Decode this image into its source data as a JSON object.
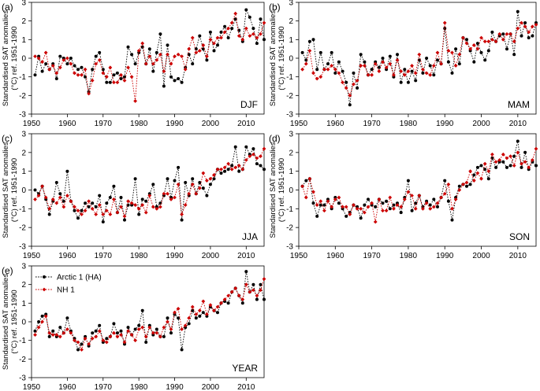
{
  "colors": {
    "arctic": "#000000",
    "nh": "#cc0000"
  },
  "legend": {
    "arctic": "Arctic 1 (HA)",
    "nh": "NH 1"
  },
  "chart_data": [
    {
      "type": "line",
      "panel": "(a)",
      "season": "DJF",
      "ylabel_line1": "Standardised SAT anomalies",
      "ylabel_line2": "(°C) ref. 1951-1990",
      "xlim": [
        1950,
        2015
      ],
      "ylim": [
        -3,
        3
      ],
      "xticks": [
        1950,
        1960,
        1970,
        1980,
        1990,
        2000,
        2010
      ],
      "yticks": [
        -3,
        -2,
        -1,
        0,
        1,
        2,
        3
      ],
      "x": [
        1951,
        1952,
        1953,
        1954,
        1955,
        1956,
        1957,
        1958,
        1959,
        1960,
        1961,
        1962,
        1963,
        1964,
        1965,
        1966,
        1967,
        1968,
        1969,
        1970,
        1971,
        1972,
        1973,
        1974,
        1975,
        1976,
        1977,
        1978,
        1979,
        1980,
        1981,
        1982,
        1983,
        1984,
        1985,
        1986,
        1987,
        1988,
        1989,
        1990,
        1991,
        1992,
        1993,
        1994,
        1995,
        1996,
        1997,
        1998,
        1999,
        2000,
        2001,
        2002,
        2003,
        2004,
        2005,
        2006,
        2007,
        2008,
        2009,
        2010,
        2011,
        2012,
        2013,
        2014,
        2015
      ],
      "series": [
        {
          "name": "Arctic 1 (HA)",
          "values": [
            -0.9,
            0.1,
            -0.7,
            -0.3,
            -0.6,
            -0.3,
            -1.1,
            0.1,
            0.0,
            -0.3,
            0.0,
            -0.4,
            -0.6,
            -0.5,
            -1.0,
            -1.8,
            -0.6,
            0.1,
            0.3,
            -0.6,
            -1.3,
            -1.3,
            -0.9,
            -0.8,
            -1.1,
            -1.0,
            0.6,
            0.2,
            -0.3,
            0.3,
            0.6,
            -0.3,
            0.5,
            -0.7,
            0.3,
            1.3,
            -1.5,
            0.7,
            -1.0,
            -1.2,
            -1.1,
            -1.3,
            -0.5,
            0.2,
            -0.3,
            0.5,
            1.2,
            0.5,
            -0.1,
            1.4,
            0.4,
            0.7,
            1.4,
            1.7,
            1.1,
            1.6,
            2.1,
            1.5,
            0.9,
            2.6,
            2.2,
            1.6,
            0.8,
            2.1,
            1.0
          ]
        },
        {
          "name": "NH 1",
          "values": [
            0.1,
            0.0,
            -0.2,
            0.3,
            -0.6,
            -0.4,
            -0.8,
            -0.5,
            -0.1,
            0.0,
            -0.3,
            -0.8,
            -0.9,
            -0.9,
            -0.6,
            -1.9,
            -1.2,
            -0.3,
            -0.1,
            -0.8,
            -1.0,
            -0.5,
            -1.3,
            -1.3,
            -0.9,
            -1.2,
            -0.5,
            -1.0,
            -2.3,
            0.4,
            0.8,
            -0.3,
            0.1,
            -0.3,
            -0.1,
            0.2,
            -0.7,
            0.2,
            -0.3,
            0.1,
            0.2,
            0.1,
            -0.6,
            0.5,
            1.1,
            0.3,
            0.4,
            0.7,
            0.1,
            1.0,
            0.8,
            1.1,
            1.1,
            1.4,
            1.6,
            1.9,
            2.4,
            1.2,
            1.0,
            1.6,
            1.2,
            1.3,
            1.1,
            1.3,
            1.9
          ]
        }
      ]
    },
    {
      "type": "line",
      "panel": "(b)",
      "season": "MAM",
      "ylabel_line1": "Standardised SAT anomalies",
      "ylabel_line2": "(°C) ref. 1951-1990",
      "xlim": [
        1950,
        2015
      ],
      "ylim": [
        -3,
        3
      ],
      "xticks": [
        1950,
        1960,
        1970,
        1980,
        1990,
        2000,
        2010
      ],
      "yticks": [
        -3,
        -2,
        -1,
        0,
        1,
        2,
        3
      ],
      "x": [
        1951,
        1952,
        1953,
        1954,
        1955,
        1956,
        1957,
        1958,
        1959,
        1960,
        1961,
        1962,
        1963,
        1964,
        1965,
        1966,
        1967,
        1968,
        1969,
        1970,
        1971,
        1972,
        1973,
        1974,
        1975,
        1976,
        1977,
        1978,
        1979,
        1980,
        1981,
        1982,
        1983,
        1984,
        1985,
        1986,
        1987,
        1988,
        1989,
        1990,
        1991,
        1992,
        1993,
        1994,
        1995,
        1996,
        1997,
        1998,
        1999,
        2000,
        2001,
        2002,
        2003,
        2004,
        2005,
        2006,
        2007,
        2008,
        2009,
        2010,
        2011,
        2012,
        2013,
        2014,
        2015
      ],
      "series": [
        {
          "name": "Arctic 1 (HA)",
          "values": [
            0.3,
            -0.1,
            0.9,
            1.0,
            -0.6,
            0.3,
            -0.6,
            -0.3,
            0.3,
            -0.8,
            -0.2,
            -0.7,
            -1.3,
            -2.5,
            -0.8,
            -1.6,
            0.2,
            -0.2,
            -0.9,
            -0.6,
            -0.2,
            -0.5,
            0.0,
            -0.6,
            0.1,
            -1.0,
            0.2,
            -1.3,
            -0.6,
            -1.3,
            -0.7,
            -1.2,
            -0.1,
            -0.8,
            0.0,
            -0.4,
            -0.9,
            -0.1,
            -0.3,
            1.6,
            -0.2,
            -0.8,
            0.5,
            -0.3,
            1.1,
            1.0,
            0.4,
            -0.2,
            0.8,
            0.3,
            -0.1,
            0.4,
            1.4,
            0.9,
            1.2,
            1.3,
            0.5,
            1.3,
            0.2,
            2.5,
            1.2,
            1.9,
            1.1,
            1.2,
            1.9
          ]
        },
        {
          "name": "NH 1",
          "values": [
            -0.6,
            -0.3,
            0.4,
            -0.8,
            -1.1,
            -1.0,
            -0.6,
            -0.6,
            -0.4,
            -0.6,
            -0.8,
            -1.3,
            -1.6,
            -2.0,
            -1.4,
            -1.2,
            -0.4,
            -0.4,
            -0.9,
            -0.9,
            -0.3,
            -0.7,
            -0.2,
            -0.5,
            -0.3,
            -0.9,
            -0.1,
            -0.7,
            -0.9,
            -0.7,
            -0.4,
            -0.8,
            0.2,
            -0.6,
            -0.8,
            -0.9,
            -0.4,
            0.3,
            -0.3,
            1.9,
            0.4,
            0.3,
            -0.4,
            0.2,
            1.1,
            0.8,
            0.5,
            0.7,
            0.5,
            1.1,
            0.9,
            0.9,
            1.0,
            0.9,
            1.3,
            1.0,
            1.3,
            1.3,
            0.9,
            1.6,
            1.9,
            1.7,
            1.4,
            1.7,
            1.8
          ]
        }
      ]
    },
    {
      "type": "line",
      "panel": "(c)",
      "season": "JJA",
      "ylabel_line1": "Standardised SAT anomalies",
      "ylabel_line2": "(°C) ref. 1951-1990",
      "xlim": [
        1950,
        2015
      ],
      "ylim": [
        -3,
        3
      ],
      "xticks": [
        1950,
        1960,
        1970,
        1980,
        1990,
        2000,
        2010
      ],
      "yticks": [
        -3,
        -2,
        -1,
        0,
        1,
        2,
        3
      ],
      "x": [
        1951,
        1952,
        1953,
        1954,
        1955,
        1956,
        1957,
        1958,
        1959,
        1960,
        1961,
        1962,
        1963,
        1964,
        1965,
        1966,
        1967,
        1968,
        1969,
        1970,
        1971,
        1972,
        1973,
        1974,
        1975,
        1976,
        1977,
        1978,
        1979,
        1980,
        1981,
        1982,
        1983,
        1984,
        1985,
        1986,
        1987,
        1988,
        1989,
        1990,
        1991,
        1992,
        1993,
        1994,
        1995,
        1996,
        1997,
        1998,
        1999,
        2000,
        2001,
        2002,
        2003,
        2004,
        2005,
        2006,
        2007,
        2008,
        2009,
        2010,
        2011,
        2012,
        2013,
        2014,
        2015
      ],
      "series": [
        {
          "name": "Arctic 1 (HA)",
          "values": [
            0.0,
            -0.2,
            0.2,
            -0.5,
            -1.3,
            -0.6,
            0.4,
            -0.2,
            -0.6,
            1.0,
            -0.6,
            -1.1,
            -1.5,
            -1.1,
            -0.7,
            -0.9,
            -0.7,
            -0.9,
            -0.3,
            -1.7,
            -0.7,
            -0.4,
            0.2,
            -1.2,
            -0.4,
            -1.6,
            -0.8,
            -0.8,
            0.6,
            -1.3,
            -0.5,
            -0.6,
            -0.2,
            0.3,
            -0.9,
            -0.7,
            -0.3,
            0.6,
            -0.4,
            0.5,
            1.2,
            -1.6,
            0.4,
            -0.3,
            0.6,
            -0.2,
            0.4,
            0.1,
            -0.3,
            0.3,
            0.6,
            1.1,
            0.9,
            1.0,
            1.1,
            1.3,
            2.3,
            1.0,
            1.1,
            2.3,
            1.9,
            2.2,
            1.4,
            1.3,
            1.1
          ]
        },
        {
          "name": "NH 1",
          "values": [
            -0.5,
            -0.3,
            0.2,
            -0.4,
            -1.0,
            -0.5,
            -0.7,
            -0.4,
            -0.9,
            -0.3,
            -0.6,
            -0.9,
            -1.1,
            -1.3,
            -1.1,
            -0.6,
            -1.0,
            -1.3,
            -0.8,
            -1.3,
            -1.1,
            -1.3,
            -0.5,
            -1.2,
            -0.9,
            -1.4,
            -0.6,
            -0.7,
            -0.8,
            -1.0,
            -0.8,
            -1.2,
            -0.3,
            -0.9,
            -1.0,
            -0.9,
            -0.2,
            -0.2,
            -0.5,
            -0.4,
            0.3,
            -1.3,
            -0.8,
            -0.2,
            0.3,
            -0.2,
            0.1,
            0.9,
            0.5,
            0.6,
            0.8,
            1.1,
            1.1,
            1.2,
            1.4,
            1.1,
            1.2,
            1.3,
            1.1,
            1.6,
            1.8,
            1.9,
            1.7,
            1.8,
            2.2
          ]
        }
      ]
    },
    {
      "type": "line",
      "panel": "(d)",
      "season": "SON",
      "ylabel_line1": "Standardised SAT anomalies",
      "ylabel_line2": "(°C) ref. 1951-1990",
      "xlim": [
        1950,
        2015
      ],
      "ylim": [
        -3,
        3
      ],
      "xticks": [
        1950,
        1960,
        1970,
        1980,
        1990,
        2000,
        2010
      ],
      "yticks": [
        -3,
        -2,
        -1,
        0,
        1,
        2,
        3
      ],
      "x": [
        1951,
        1952,
        1953,
        1954,
        1955,
        1956,
        1957,
        1958,
        1959,
        1960,
        1961,
        1962,
        1963,
        1964,
        1965,
        1966,
        1967,
        1968,
        1969,
        1970,
        1971,
        1972,
        1973,
        1974,
        1975,
        1976,
        1977,
        1978,
        1979,
        1980,
        1981,
        1982,
        1983,
        1984,
        1985,
        1986,
        1987,
        1988,
        1989,
        1990,
        1991,
        1992,
        1993,
        1994,
        1995,
        1996,
        1997,
        1998,
        1999,
        2000,
        2001,
        2002,
        2003,
        2004,
        2005,
        2006,
        2007,
        2008,
        2009,
        2010,
        2011,
        2012,
        2013,
        2014,
        2015
      ],
      "series": [
        {
          "name": "Arctic 1 (HA)",
          "values": [
            0.2,
            0.5,
            0.6,
            -0.7,
            -1.4,
            -0.8,
            -0.8,
            -0.5,
            -1.0,
            -0.4,
            -0.7,
            -1.0,
            -1.4,
            -1.2,
            -0.8,
            -0.9,
            -1.5,
            -0.8,
            -0.5,
            -0.8,
            -0.9,
            -0.5,
            -0.7,
            -0.6,
            -1.0,
            -0.8,
            -0.7,
            -1.2,
            -0.4,
            0.5,
            -1.1,
            -0.7,
            -0.3,
            -0.9,
            -0.6,
            -0.8,
            -0.5,
            -0.9,
            -0.4,
            0.5,
            -0.6,
            -1.6,
            -0.4,
            0.2,
            0.3,
            0.2,
            0.3,
            0.8,
            1.2,
            1.3,
            1.1,
            0.6,
            1.7,
            1.2,
            1.5,
            1.5,
            1.2,
            1.3,
            1.8,
            2.6,
            1.2,
            2.0,
            1.1,
            1.5,
            1.3
          ]
        },
        {
          "name": "NH 1",
          "values": [
            0.2,
            -0.4,
            0.6,
            -0.1,
            -0.8,
            -0.6,
            -1.1,
            -0.6,
            -0.9,
            -0.5,
            -0.4,
            -0.9,
            -0.9,
            -1.3,
            -0.8,
            -1.0,
            -1.0,
            -1.2,
            -0.9,
            -0.7,
            -1.7,
            -0.5,
            -1.1,
            -1.1,
            -0.4,
            -1.0,
            -0.8,
            -0.9,
            -0.5,
            -0.1,
            -0.3,
            -1.0,
            -0.3,
            -1.0,
            -0.7,
            -1.0,
            -0.9,
            -0.7,
            -0.4,
            -0.2,
            0.3,
            -1.0,
            -0.5,
            0.0,
            0.3,
            0.4,
            1.0,
            0.5,
            0.9,
            0.6,
            1.4,
            1.0,
            1.9,
            1.5,
            1.6,
            1.9,
            1.7,
            1.8,
            1.3,
            2.0,
            1.4,
            1.5,
            1.2,
            1.6,
            2.2
          ]
        }
      ]
    },
    {
      "type": "line",
      "panel": "(e)",
      "season": "YEAR",
      "ylabel_line1": "Standardised SAT anomalies",
      "ylabel_line2": "(°C) ref. 1951-1990",
      "xlim": [
        1950,
        2015
      ],
      "ylim": [
        -3,
        3
      ],
      "xticks": [
        1950,
        1960,
        1970,
        1980,
        1990,
        2000,
        2010
      ],
      "yticks": [
        -3,
        -2,
        -1,
        0,
        1,
        2,
        3
      ],
      "x": [
        1951,
        1952,
        1953,
        1954,
        1955,
        1956,
        1957,
        1958,
        1959,
        1960,
        1961,
        1962,
        1963,
        1964,
        1965,
        1966,
        1967,
        1968,
        1969,
        1970,
        1971,
        1972,
        1973,
        1974,
        1975,
        1976,
        1977,
        1978,
        1979,
        1980,
        1981,
        1982,
        1983,
        1984,
        1985,
        1986,
        1987,
        1988,
        1989,
        1990,
        1991,
        1992,
        1993,
        1994,
        1995,
        1996,
        1997,
        1998,
        1999,
        2000,
        2001,
        2002,
        2003,
        2004,
        2005,
        2006,
        2007,
        2008,
        2009,
        2010,
        2011,
        2012,
        2013,
        2014,
        2015
      ],
      "series": [
        {
          "name": "Arctic 1 (HA)",
          "values": [
            -0.5,
            0.0,
            0.3,
            0.4,
            -0.8,
            -0.5,
            -0.8,
            -0.3,
            -0.6,
            0.2,
            -0.5,
            -0.9,
            -1.5,
            -1.2,
            -0.8,
            -1.3,
            -0.6,
            -0.5,
            -0.2,
            -1.1,
            -0.9,
            -0.8,
            -0.1,
            -0.6,
            -0.5,
            -1.2,
            -0.3,
            -0.7,
            -0.4,
            -0.2,
            0.6,
            -1.1,
            -0.2,
            -0.7,
            -0.4,
            -0.8,
            -0.8,
            0.2,
            -0.6,
            0.4,
            0.2,
            -1.5,
            -0.3,
            -0.1,
            0.6,
            0.2,
            0.3,
            0.5,
            0.3,
            0.8,
            0.6,
            0.5,
            1.0,
            1.1,
            1.0,
            1.6,
            1.8,
            1.4,
            1.0,
            2.7,
            1.6,
            2.0,
            1.2,
            2.0,
            1.2
          ]
        },
        {
          "name": "NH 1",
          "values": [
            -0.7,
            -0.3,
            0.0,
            0.3,
            -0.6,
            -0.7,
            -0.7,
            -0.8,
            -0.6,
            -0.4,
            -0.6,
            -1.0,
            -1.1,
            -1.5,
            -0.9,
            -1.2,
            -0.9,
            -0.8,
            -0.5,
            -1.0,
            -1.1,
            -0.8,
            -0.6,
            -0.8,
            -0.7,
            -1.1,
            -0.5,
            -0.7,
            -1.0,
            -0.4,
            -0.3,
            -0.8,
            -0.3,
            -0.6,
            -0.6,
            -0.8,
            -0.3,
            0.0,
            -0.4,
            0.5,
            0.7,
            -0.4,
            -0.2,
            0.2,
            0.8,
            0.4,
            0.6,
            1.1,
            0.4,
            0.9,
            0.6,
            0.8,
            1.0,
            1.2,
            1.4,
            1.6,
            1.8,
            1.4,
            1.2,
            2.0,
            1.6,
            1.7,
            1.4,
            1.7,
            2.3
          ]
        }
      ]
    }
  ]
}
